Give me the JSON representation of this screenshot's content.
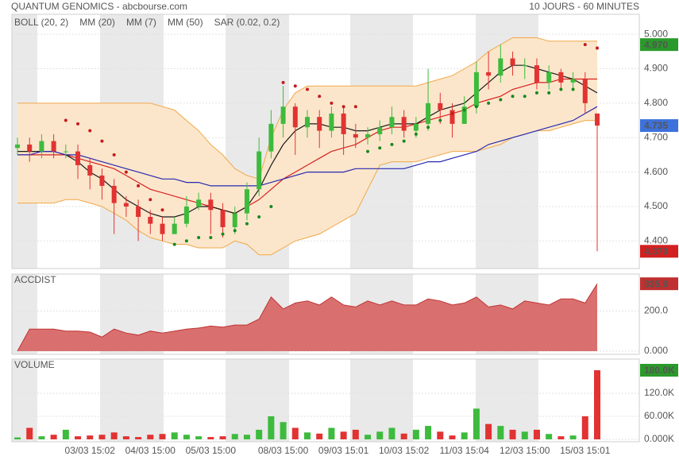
{
  "header": {
    "title": "QUANTUM GENOMICS - abcbourse.com",
    "period": "10 JOURS - 60 MINUTES"
  },
  "chart_data": [
    {
      "type": "candlestick",
      "open": [
        4.67,
        4.68,
        4.66,
        4.69,
        4.66,
        4.66,
        4.62,
        4.59,
        4.56,
        4.51,
        4.5,
        4.47,
        4.45,
        4.42,
        4.45,
        4.5,
        4.52,
        4.49,
        4.44,
        4.48,
        4.55,
        4.66,
        4.74,
        4.79,
        4.73,
        4.76,
        4.72,
        4.77,
        4.71,
        4.7,
        4.71,
        4.73,
        4.76,
        4.72,
        4.74,
        4.8,
        4.78,
        4.74,
        4.79,
        4.89,
        4.88,
        4.93,
        4.91,
        4.91,
        4.86,
        4.89,
        4.86,
        4.87,
        4.77
      ],
      "high": [
        4.7,
        4.7,
        4.71,
        4.71,
        4.68,
        4.68,
        4.64,
        4.61,
        4.58,
        4.53,
        4.52,
        4.49,
        4.47,
        4.47,
        4.53,
        4.54,
        4.54,
        4.51,
        4.5,
        4.57,
        4.7,
        4.78,
        4.85,
        4.8,
        4.78,
        4.78,
        4.79,
        4.79,
        4.74,
        4.73,
        4.75,
        4.79,
        4.78,
        4.76,
        4.9,
        4.83,
        4.8,
        4.82,
        4.92,
        4.95,
        4.97,
        4.95,
        4.93,
        4.93,
        4.91,
        4.9,
        4.89,
        4.89,
        4.77
      ],
      "low": [
        4.65,
        4.63,
        4.64,
        4.64,
        4.64,
        4.58,
        4.55,
        4.52,
        4.42,
        4.47,
        4.4,
        4.42,
        4.4,
        4.42,
        4.44,
        4.49,
        4.42,
        4.41,
        4.42,
        4.46,
        4.53,
        4.64,
        4.7,
        4.65,
        4.7,
        4.67,
        4.7,
        4.65,
        4.67,
        4.68,
        4.69,
        4.71,
        4.7,
        4.7,
        4.72,
        4.74,
        4.7,
        4.74,
        4.77,
        4.84,
        4.86,
        4.88,
        4.87,
        4.84,
        4.84,
        4.84,
        4.84,
        4.77,
        4.37
      ],
      "close": [
        4.68,
        4.66,
        4.69,
        4.66,
        4.66,
        4.62,
        4.59,
        4.56,
        4.51,
        4.5,
        4.47,
        4.45,
        4.42,
        4.45,
        4.5,
        4.52,
        4.49,
        4.44,
        4.48,
        4.55,
        4.66,
        4.74,
        4.79,
        4.73,
        4.76,
        4.72,
        4.77,
        4.71,
        4.7,
        4.71,
        4.73,
        4.76,
        4.72,
        4.74,
        4.8,
        4.78,
        4.74,
        4.79,
        4.89,
        4.88,
        4.93,
        4.91,
        4.91,
        4.86,
        4.89,
        4.86,
        4.87,
        4.8,
        4.735
      ],
      "up_color": "#3dbb3d",
      "down_color": "#e23232",
      "overlays": [
        {
          "name": "BOLL (20, 2)",
          "type": "band",
          "color": "#f0a848",
          "fill": "#fbe6cb",
          "upper": [
            4.8,
            4.8,
            4.8,
            4.8,
            4.8,
            4.8,
            4.8,
            4.8,
            4.8,
            4.8,
            4.8,
            4.8,
            4.79,
            4.78,
            4.75,
            4.72,
            4.68,
            4.65,
            4.61,
            4.59,
            4.58,
            4.7,
            4.78,
            4.83,
            4.85,
            4.85,
            4.85,
            4.85,
            4.85,
            4.85,
            4.85,
            4.85,
            4.85,
            4.85,
            4.86,
            4.87,
            4.88,
            4.9,
            4.92,
            4.95,
            4.97,
            4.99,
            4.99,
            4.99,
            4.98,
            4.98,
            4.98,
            4.98,
            4.98
          ],
          "lower": [
            4.51,
            4.51,
            4.51,
            4.51,
            4.52,
            4.52,
            4.51,
            4.5,
            4.48,
            4.46,
            4.43,
            4.41,
            4.4,
            4.39,
            4.39,
            4.38,
            4.38,
            4.38,
            4.4,
            4.39,
            4.36,
            4.36,
            4.38,
            4.4,
            4.41,
            4.42,
            4.44,
            4.46,
            4.48,
            4.55,
            4.62,
            4.63,
            4.63,
            4.63,
            4.64,
            4.65,
            4.66,
            4.66,
            4.66,
            4.67,
            4.68,
            4.7,
            4.71,
            4.72,
            4.72,
            4.73,
            4.74,
            4.75,
            4.75
          ]
        },
        {
          "name": "MM (20)",
          "type": "line",
          "color": "#d82020",
          "values": [
            4.65,
            4.65,
            4.65,
            4.65,
            4.65,
            4.64,
            4.63,
            4.62,
            4.61,
            4.59,
            4.57,
            4.55,
            4.54,
            4.53,
            4.52,
            4.51,
            4.5,
            4.49,
            4.48,
            4.5,
            4.52,
            4.55,
            4.58,
            4.6,
            4.62,
            4.64,
            4.66,
            4.67,
            4.68,
            4.7,
            4.72,
            4.73,
            4.73,
            4.74,
            4.75,
            4.76,
            4.77,
            4.78,
            4.8,
            4.81,
            4.82,
            4.84,
            4.85,
            4.86,
            4.86,
            4.87,
            4.87,
            4.87,
            4.87
          ]
        },
        {
          "name": "MM (7)",
          "type": "line",
          "color": "#1a1a1a",
          "values": [
            4.66,
            4.66,
            4.66,
            4.66,
            4.65,
            4.63,
            4.6,
            4.58,
            4.55,
            4.52,
            4.5,
            4.48,
            4.47,
            4.47,
            4.48,
            4.5,
            4.5,
            4.49,
            4.48,
            4.5,
            4.55,
            4.62,
            4.68,
            4.72,
            4.74,
            4.74,
            4.73,
            4.73,
            4.72,
            4.72,
            4.73,
            4.74,
            4.74,
            4.74,
            4.76,
            4.78,
            4.79,
            4.8,
            4.83,
            4.86,
            4.89,
            4.91,
            4.91,
            4.9,
            4.89,
            4.88,
            4.87,
            4.85,
            4.83
          ]
        },
        {
          "name": "MM (50)",
          "type": "line",
          "color": "#2828b0",
          "values": [
            4.65,
            4.65,
            4.66,
            4.66,
            4.65,
            4.65,
            4.64,
            4.63,
            4.62,
            4.61,
            4.6,
            4.59,
            4.58,
            4.58,
            4.57,
            4.57,
            4.56,
            4.56,
            4.56,
            4.56,
            4.56,
            4.57,
            4.58,
            4.59,
            4.6,
            4.6,
            4.6,
            4.6,
            4.61,
            4.61,
            4.61,
            4.61,
            4.61,
            4.62,
            4.63,
            4.63,
            4.64,
            4.65,
            4.66,
            4.68,
            4.69,
            4.7,
            4.71,
            4.72,
            4.73,
            4.74,
            4.75,
            4.77,
            4.79
          ]
        },
        {
          "name": "SAR (0.02, 0.2)",
          "type": "dots",
          "color": "#c41c1c",
          "color_below": "#178a1e",
          "values": [
            null,
            null,
            null,
            null,
            4.75,
            4.74,
            4.72,
            4.69,
            4.65,
            4.6,
            4.56,
            4.52,
            4.49,
            4.39,
            4.4,
            4.41,
            4.41,
            4.42,
            4.43,
            4.45,
            4.47,
            4.5,
            4.86,
            4.85,
            4.84,
            4.82,
            4.8,
            4.79,
            4.79,
            4.66,
            4.67,
            4.68,
            4.69,
            4.71,
            4.73,
            4.75,
            4.77,
            4.78,
            4.79,
            4.8,
            4.81,
            4.82,
            4.82,
            4.83,
            4.83,
            4.84,
            4.84,
            4.97,
            4.96
          ]
        }
      ],
      "ylim": [
        4.32,
        5.058
      ],
      "yticks": [
        {
          "value": 4.4,
          "label": "4.400"
        },
        {
          "value": 4.5,
          "label": "4.500"
        },
        {
          "value": 4.6,
          "label": "4.600"
        },
        {
          "value": 4.7,
          "label": "4.700"
        },
        {
          "value": 4.8,
          "label": "4.800"
        },
        {
          "value": 4.9,
          "label": "4.900"
        },
        {
          "value": 5.0,
          "label": "5.000"
        }
      ],
      "markers": [
        {
          "value": 4.97,
          "label": "4.970",
          "color": "#2a9a2a"
        },
        {
          "value": 4.735,
          "label": "4.735",
          "color": "#3d72dc"
        },
        {
          "value": 4.37,
          "label": "4.370",
          "color": "#d42020"
        }
      ]
    },
    {
      "type": "area",
      "title": "ACCDIST",
      "title_color": "#b52020",
      "color": "#d9706f",
      "line_color": "#c03434",
      "values": [
        0,
        110,
        110,
        110,
        100,
        100,
        95,
        70,
        110,
        90,
        80,
        100,
        90,
        100,
        110,
        115,
        125,
        120,
        130,
        130,
        160,
        270,
        210,
        240,
        250,
        230,
        270,
        230,
        220,
        250,
        230,
        250,
        230,
        230,
        260,
        250,
        230,
        240,
        270,
        220,
        230,
        210,
        250,
        240,
        230,
        260,
        260,
        240,
        335.8
      ],
      "ylim": [
        -16,
        384
      ],
      "yticks": [
        {
          "value": 0,
          "label": "0.000"
        },
        {
          "value": 200,
          "label": "200.0"
        }
      ],
      "marker": {
        "value": 335.8,
        "label": "335.8",
        "color": "#c03030"
      }
    },
    {
      "type": "bar",
      "title": "VOLUME",
      "title_color": "#2a9a2a",
      "categories": [
        null,
        null,
        null,
        null,
        null,
        null,
        "03/03 15:02",
        null,
        null,
        null,
        null,
        "04/03 15:00",
        null,
        null,
        null,
        null,
        "05/03 15:00",
        null,
        null,
        null,
        null,
        null,
        "08/03 15:00",
        null,
        null,
        null,
        null,
        "09/03 15:01",
        null,
        null,
        null,
        null,
        "10/03 15:02",
        null,
        null,
        null,
        null,
        "11/03 15:04",
        null,
        null,
        null,
        null,
        "12/03 15:00",
        null,
        null,
        null,
        null,
        "15/03 15:01",
        null
      ],
      "values": [
        5,
        30,
        8,
        12,
        25,
        8,
        10,
        12,
        18,
        8,
        6,
        12,
        14,
        18,
        12,
        8,
        6,
        8,
        14,
        12,
        25,
        60,
        45,
        30,
        18,
        15,
        30,
        20,
        25,
        12,
        20,
        30,
        15,
        25,
        35,
        20,
        10,
        18,
        80,
        40,
        35,
        25,
        20,
        25,
        14,
        8,
        10,
        60,
        180
      ],
      "ylim": [
        0,
        209
      ],
      "yticks": [
        {
          "value": 0,
          "label": "0.000K"
        },
        {
          "value": 60,
          "label": "60.00K"
        },
        {
          "value": 120,
          "label": "120.0K"
        }
      ],
      "marker": {
        "value": 180,
        "label": "180.0K",
        "color": "#2a9a2a"
      }
    }
  ]
}
